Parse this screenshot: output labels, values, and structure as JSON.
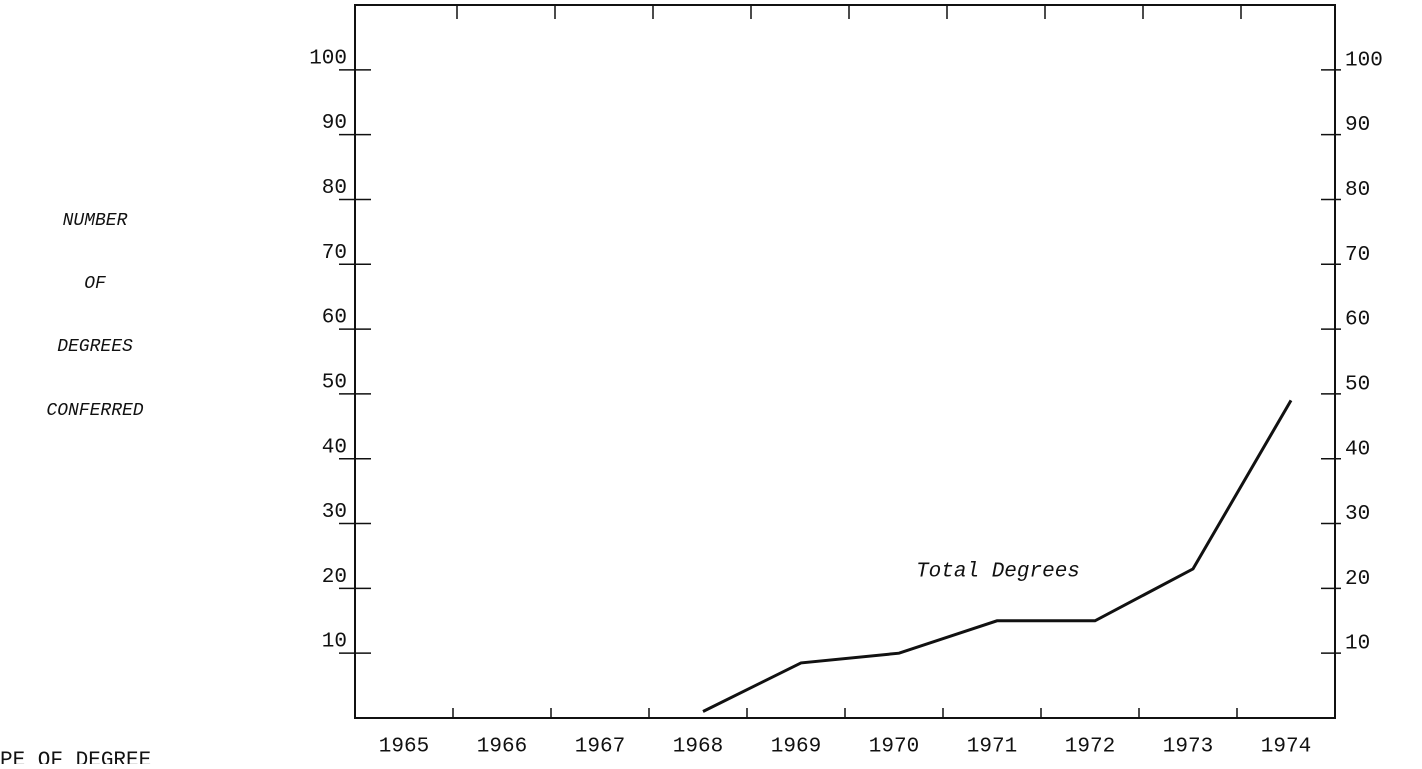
{
  "chart_data": {
    "type": "line",
    "ylabel_lines": [
      "NUMBER",
      "OF",
      "DEGREES",
      "CONFERRED"
    ],
    "categories": [
      "1965",
      "1966",
      "1967",
      "1968",
      "1969",
      "1970",
      "1971",
      "1972",
      "1973",
      "1974"
    ],
    "series": [
      {
        "name": "Total Degrees",
        "color": "#111111",
        "values": [
          null,
          null,
          null,
          1,
          8.5,
          10,
          15,
          15,
          23,
          49
        ]
      }
    ],
    "ylim": [
      0,
      110
    ],
    "yticks": [
      10,
      20,
      30,
      40,
      50,
      60,
      70,
      80,
      90,
      100
    ],
    "y2lim": [
      0,
      110
    ],
    "y2ticks": [
      10,
      20,
      30,
      40,
      50,
      60,
      70,
      80,
      90,
      100
    ],
    "footer": "PE OF DEGREE"
  }
}
